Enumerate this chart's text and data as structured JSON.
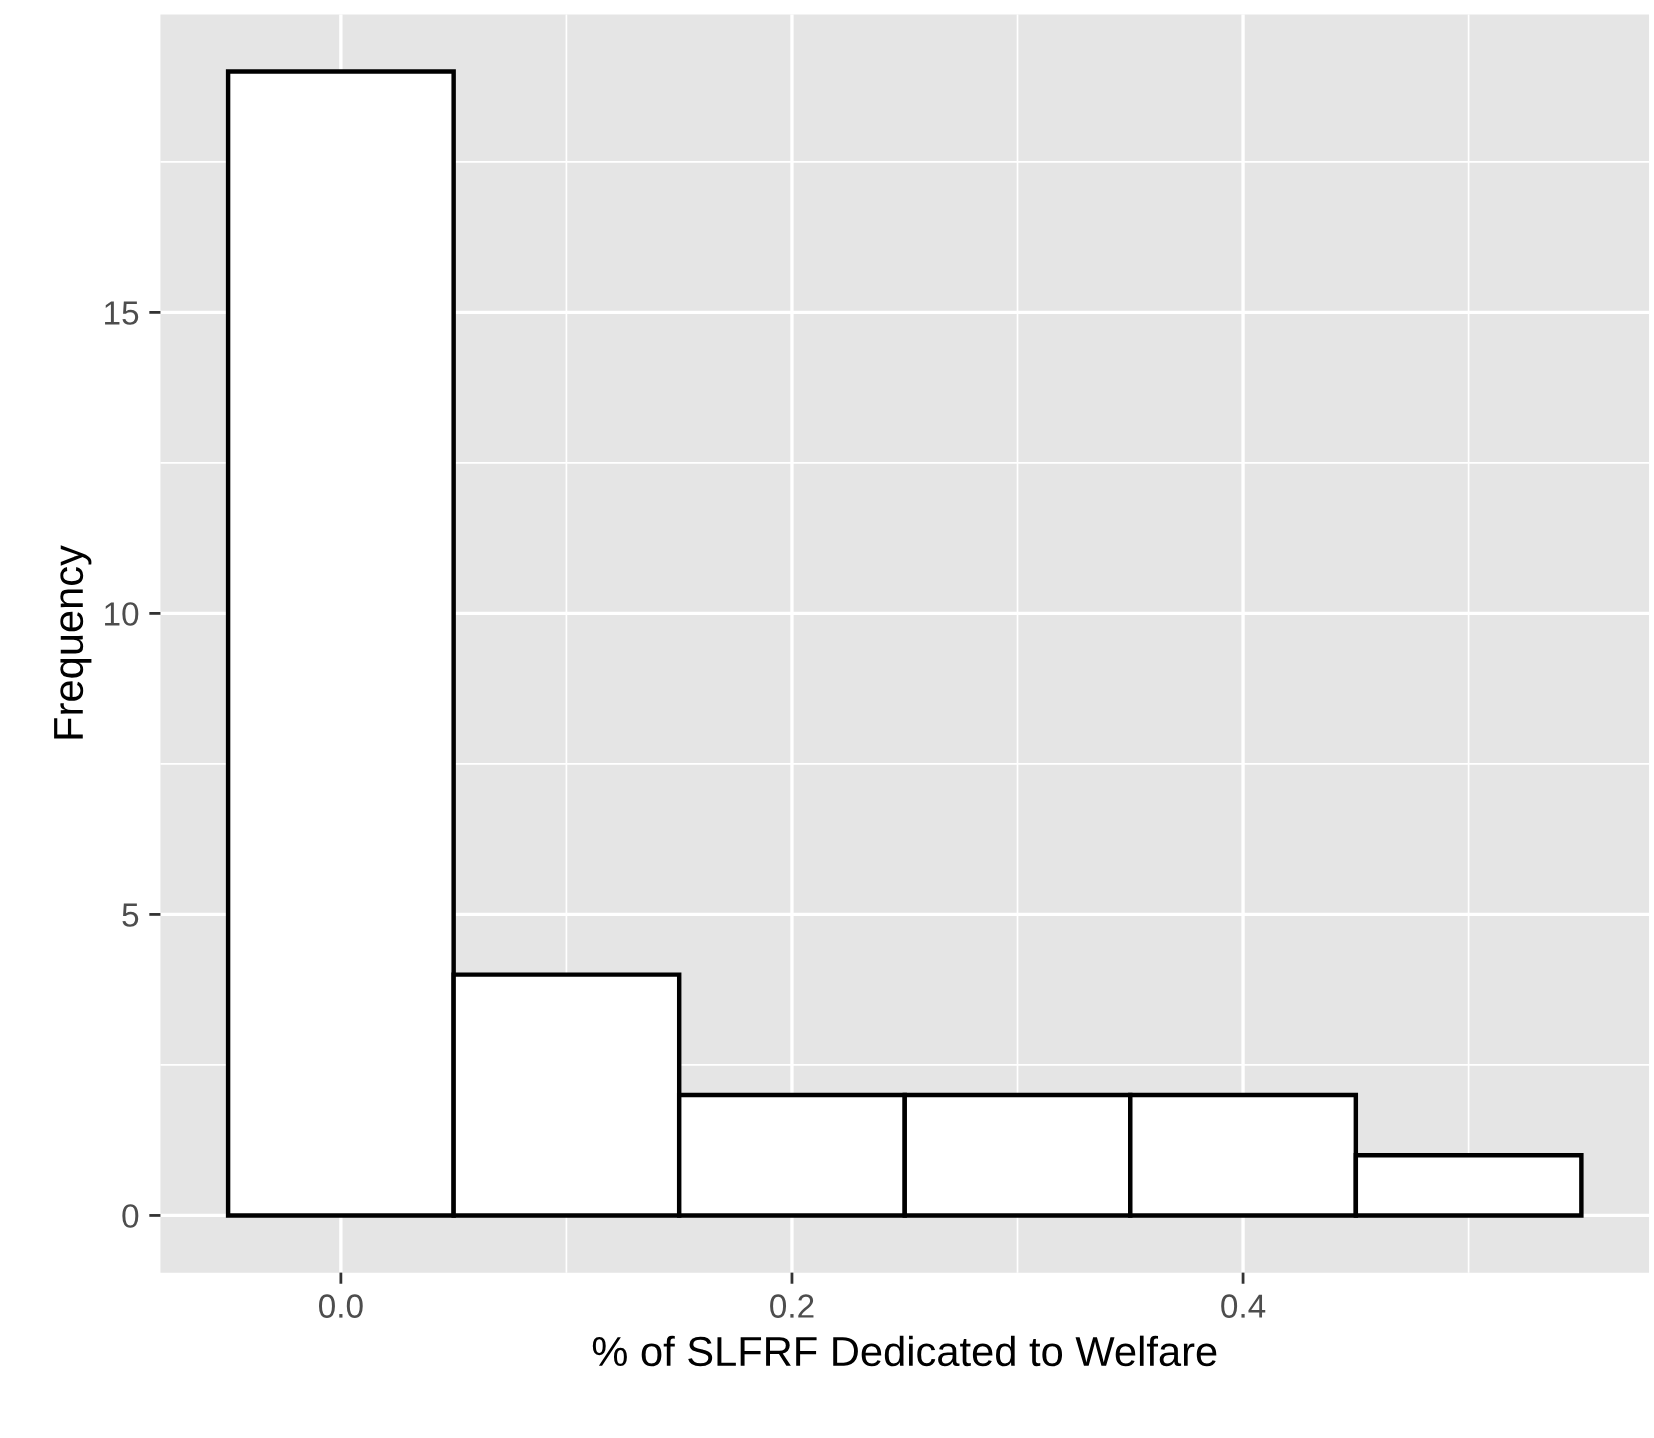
{
  "chart_data": {
    "type": "histogram",
    "xlabel": "% of SLFRF Dedicated to Welfare",
    "ylabel": "Frequency",
    "bins": [
      -0.05,
      0.05,
      0.15,
      0.25,
      0.35,
      0.45,
      0.55
    ],
    "values": [
      19,
      4,
      2,
      2,
      2,
      1
    ],
    "color": "#ffffff",
    "xlim": [
      -0.08,
      0.58
    ],
    "xticks": [
      {
        "value": 0.0,
        "label": "0.0"
      },
      {
        "value": 0.2,
        "label": "0.2"
      },
      {
        "value": 0.4,
        "label": "0.4"
      }
    ],
    "ylim": [
      -0.95,
      19.95
    ],
    "yticks": [
      0,
      5,
      10,
      15
    ],
    "grid": true
  }
}
